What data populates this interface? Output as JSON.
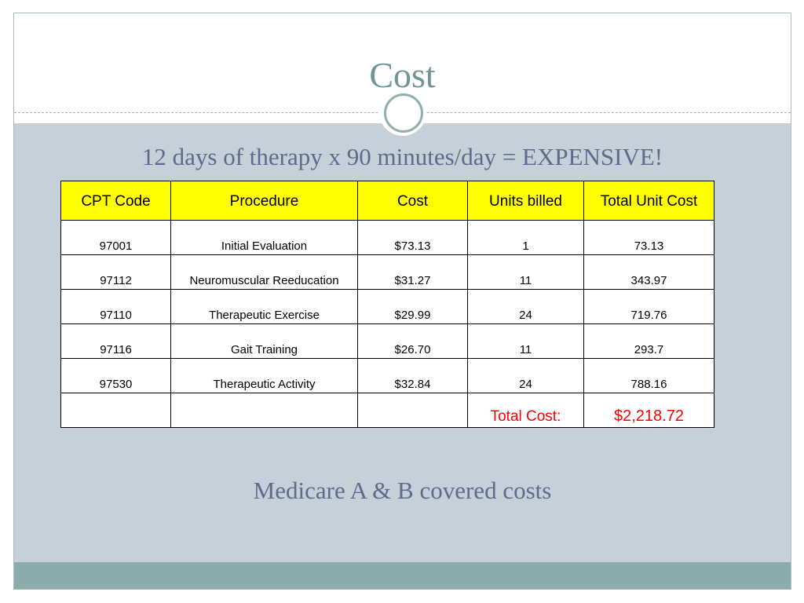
{
  "slide": {
    "title": "Cost",
    "subtitle": "12 days of therapy x 90 minutes/day = EXPENSIVE!",
    "footer_text": "Medicare A & B covered costs"
  },
  "table": {
    "headers": [
      "CPT Code",
      "Procedure",
      "Cost",
      "Units billed",
      "Total Unit Cost"
    ],
    "rows": [
      [
        "97001",
        "Initial Evaluation",
        "$73.13",
        "1",
        "73.13"
      ],
      [
        "97112",
        "Neuromuscular Reeducation",
        "$31.27",
        "11",
        "343.97"
      ],
      [
        "97110",
        "Therapeutic Exercise",
        "$29.99",
        "24",
        "719.76"
      ],
      [
        "97116",
        "Gait Training",
        "$26.70",
        "11",
        "293.7"
      ],
      [
        "97530",
        "Therapeutic Activity",
        "$32.84",
        "24",
        "788.16"
      ]
    ],
    "total_label": "Total Cost:",
    "total_value": "$2,218.72"
  },
  "colors": {
    "title": "#6f9595",
    "text_body": "#5d6b8c",
    "panel_bg": "#c5d0d9",
    "header_fill": "#ffff00",
    "total_text": "#ff0000",
    "footer_bar": "#8aacac"
  }
}
